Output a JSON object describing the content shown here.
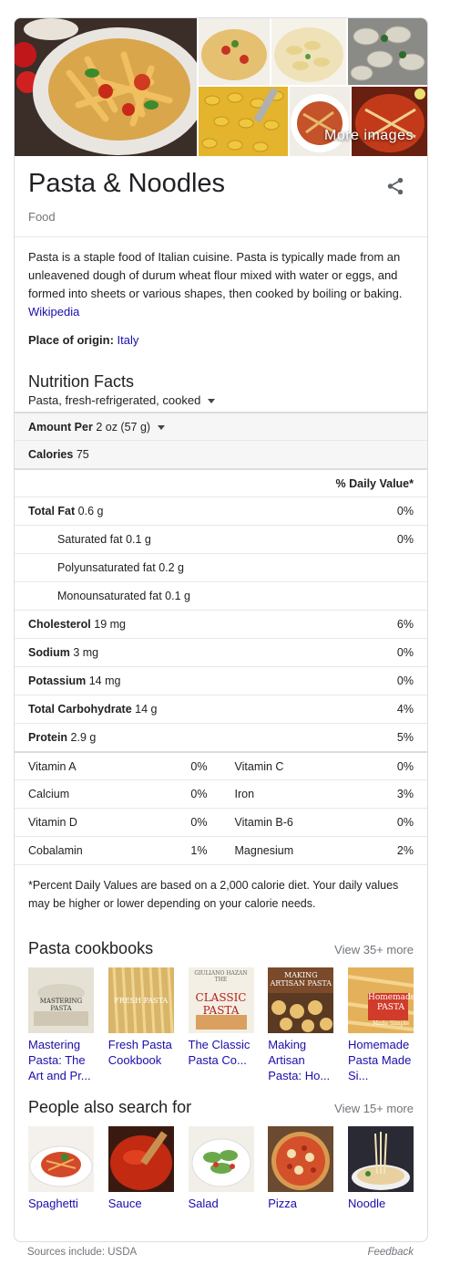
{
  "images": {
    "more_label": "More images"
  },
  "header": {
    "title": "Pasta & Noodles",
    "subtitle": "Food"
  },
  "description": {
    "text": "Pasta is a staple food of Italian cuisine. Pasta is typically made from an unleavened dough of durum wheat flour mixed with water or eggs, and formed into sheets or various shapes, then cooked by boiling or baking.",
    "source_link": "Wikipedia"
  },
  "origin": {
    "label": "Place of origin:",
    "value": "Italy"
  },
  "nutrition": {
    "title": "Nutrition Facts",
    "item": "Pasta, fresh-refrigerated, cooked",
    "amount_label": "Amount Per",
    "amount_value": "2 oz (57 g)",
    "calories_label": "Calories",
    "calories_value": "75",
    "daily_value_header": "% Daily Value*",
    "rows": [
      {
        "label": "Total Fat",
        "amount": "0.6 g",
        "pct": "0%"
      },
      {
        "label": "Saturated fat",
        "amount": "0.1 g",
        "pct": "0%"
      },
      {
        "label": "Polyunsaturated fat",
        "amount": "0.2 g",
        "pct": ""
      },
      {
        "label": "Monounsaturated fat",
        "amount": "0.1 g",
        "pct": ""
      },
      {
        "label": "Cholesterol",
        "amount": "19 mg",
        "pct": "6%"
      },
      {
        "label": "Sodium",
        "amount": "3 mg",
        "pct": "0%"
      },
      {
        "label": "Potassium",
        "amount": "14 mg",
        "pct": "0%"
      },
      {
        "label": "Total Carbohydrate",
        "amount": "14 g",
        "pct": "4%"
      },
      {
        "label": "Protein",
        "amount": "2.9 g",
        "pct": "5%"
      }
    ],
    "vitamins": [
      [
        {
          "label": "Vitamin A",
          "pct": "0%"
        },
        {
          "label": "Vitamin C",
          "pct": "0%"
        }
      ],
      [
        {
          "label": "Calcium",
          "pct": "0%"
        },
        {
          "label": "Iron",
          "pct": "3%"
        }
      ],
      [
        {
          "label": "Vitamin D",
          "pct": "0%"
        },
        {
          "label": "Vitamin B-6",
          "pct": "0%"
        }
      ],
      [
        {
          "label": "Cobalamin",
          "pct": "1%"
        },
        {
          "label": "Magnesium",
          "pct": "2%"
        }
      ]
    ],
    "footnote": "*Percent Daily Values are based on a 2,000 calorie diet. Your daily values may be higher or lower depending on your calorie needs."
  },
  "cookbooks": {
    "title": "Pasta cookbooks",
    "more": "View 35+ more",
    "items": [
      {
        "label": "Mastering Pasta: The Art and Pr...",
        "cover": "MASTERING PASTA"
      },
      {
        "label": "Fresh Pasta Cookbook",
        "cover": "FRESH PASTA"
      },
      {
        "label": "The Classic Pasta Co...",
        "cover": "CLASSIC PASTA",
        "cover_top": "GIULIANO HAZAN THE"
      },
      {
        "label": "Making Artisan Pasta: Ho...",
        "cover": "MAKING ARTISAN PASTA"
      },
      {
        "label": "Homemade Pasta Made Si...",
        "cover": "Homemade PASTA",
        "cover_sub": "Made Simple"
      }
    ]
  },
  "also_search": {
    "title": "People also search for",
    "more": "View 15+ more",
    "items": [
      {
        "label": "Spaghetti"
      },
      {
        "label": "Sauce"
      },
      {
        "label": "Salad"
      },
      {
        "label": "Pizza"
      },
      {
        "label": "Noodle"
      }
    ]
  },
  "footer": {
    "sources": "Sources include: USDA",
    "feedback": "Feedback"
  },
  "colors": {
    "link": "#1a0dab",
    "muted": "#70757a",
    "border": "#dadce0"
  }
}
